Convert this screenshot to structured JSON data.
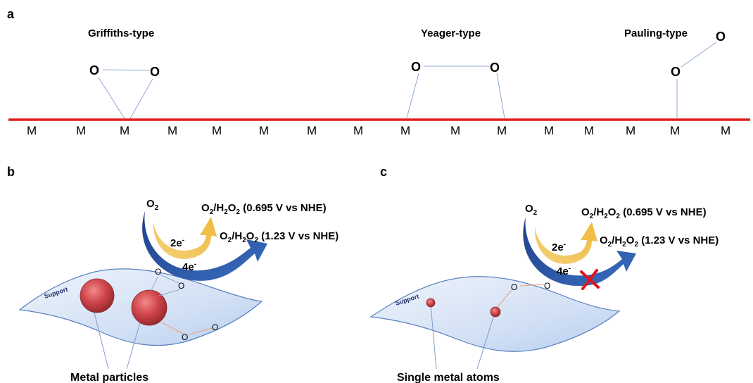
{
  "panels": {
    "a": {
      "label": "a",
      "types": [
        {
          "title": "Griffiths-type",
          "o1": "O",
          "o2": "O"
        },
        {
          "title": "Yeager-type",
          "o1": "O",
          "o2": "O"
        },
        {
          "title": "Pauling-type",
          "o1": "O",
          "o2": "O"
        }
      ],
      "metal_atoms": [
        "M",
        "M",
        "M",
        "M",
        "M",
        "M",
        "M",
        "M",
        "M",
        "M",
        "M",
        "M",
        "M",
        "M",
        "M",
        "M"
      ]
    },
    "b": {
      "label": "b",
      "o2": "O",
      "o2_sub": "2",
      "e2": "2e",
      "e2_sup": "-",
      "e4": "4e",
      "e4_sup": "-",
      "product_1": {
        "prefix": "O",
        "s1": "2",
        "mid": "/H",
        "s2": "2",
        "mid2": "O",
        "s3": "2",
        "suffix": " (0.695 V vs NHE)"
      },
      "product_2": {
        "prefix": "O",
        "s1": "2",
        "mid": "/H",
        "s2": "2",
        "mid2": "O",
        "s3": "2",
        "suffix": " (1.23 V vs NHE)"
      },
      "support": "Support",
      "oxygen_atoms": [
        "O",
        "O",
        "O",
        "O"
      ],
      "caption": "Metal particles"
    },
    "c": {
      "label": "c",
      "o2": "O",
      "o2_sub": "2",
      "e2": "2e",
      "e2_sup": "-",
      "e4": "4e",
      "e4_sup": "-",
      "product_1": {
        "prefix": "O",
        "s1": "2",
        "mid": "/H",
        "s2": "2",
        "mid2": "O",
        "s3": "2",
        "suffix": " (0.695 V vs NHE)"
      },
      "product_2": {
        "prefix": "O",
        "s1": "2",
        "mid": "/H",
        "s2": "2",
        "mid2": "O",
        "s3": "2",
        "suffix": " (1.23 V vs NHE)"
      },
      "support": "Support",
      "oxygen_atoms": [
        "O",
        "O"
      ],
      "caption": "Single metal atoms"
    }
  },
  "colors": {
    "surface_line": "#e31e1e",
    "metal_particle": "#c9393f",
    "support_fill": "#d6e3f6",
    "support_edge": "#5a7fbf",
    "arrow_4e": "#2e58a8",
    "arrow_2e": "#f2c14e",
    "cross": "#e0141a"
  }
}
